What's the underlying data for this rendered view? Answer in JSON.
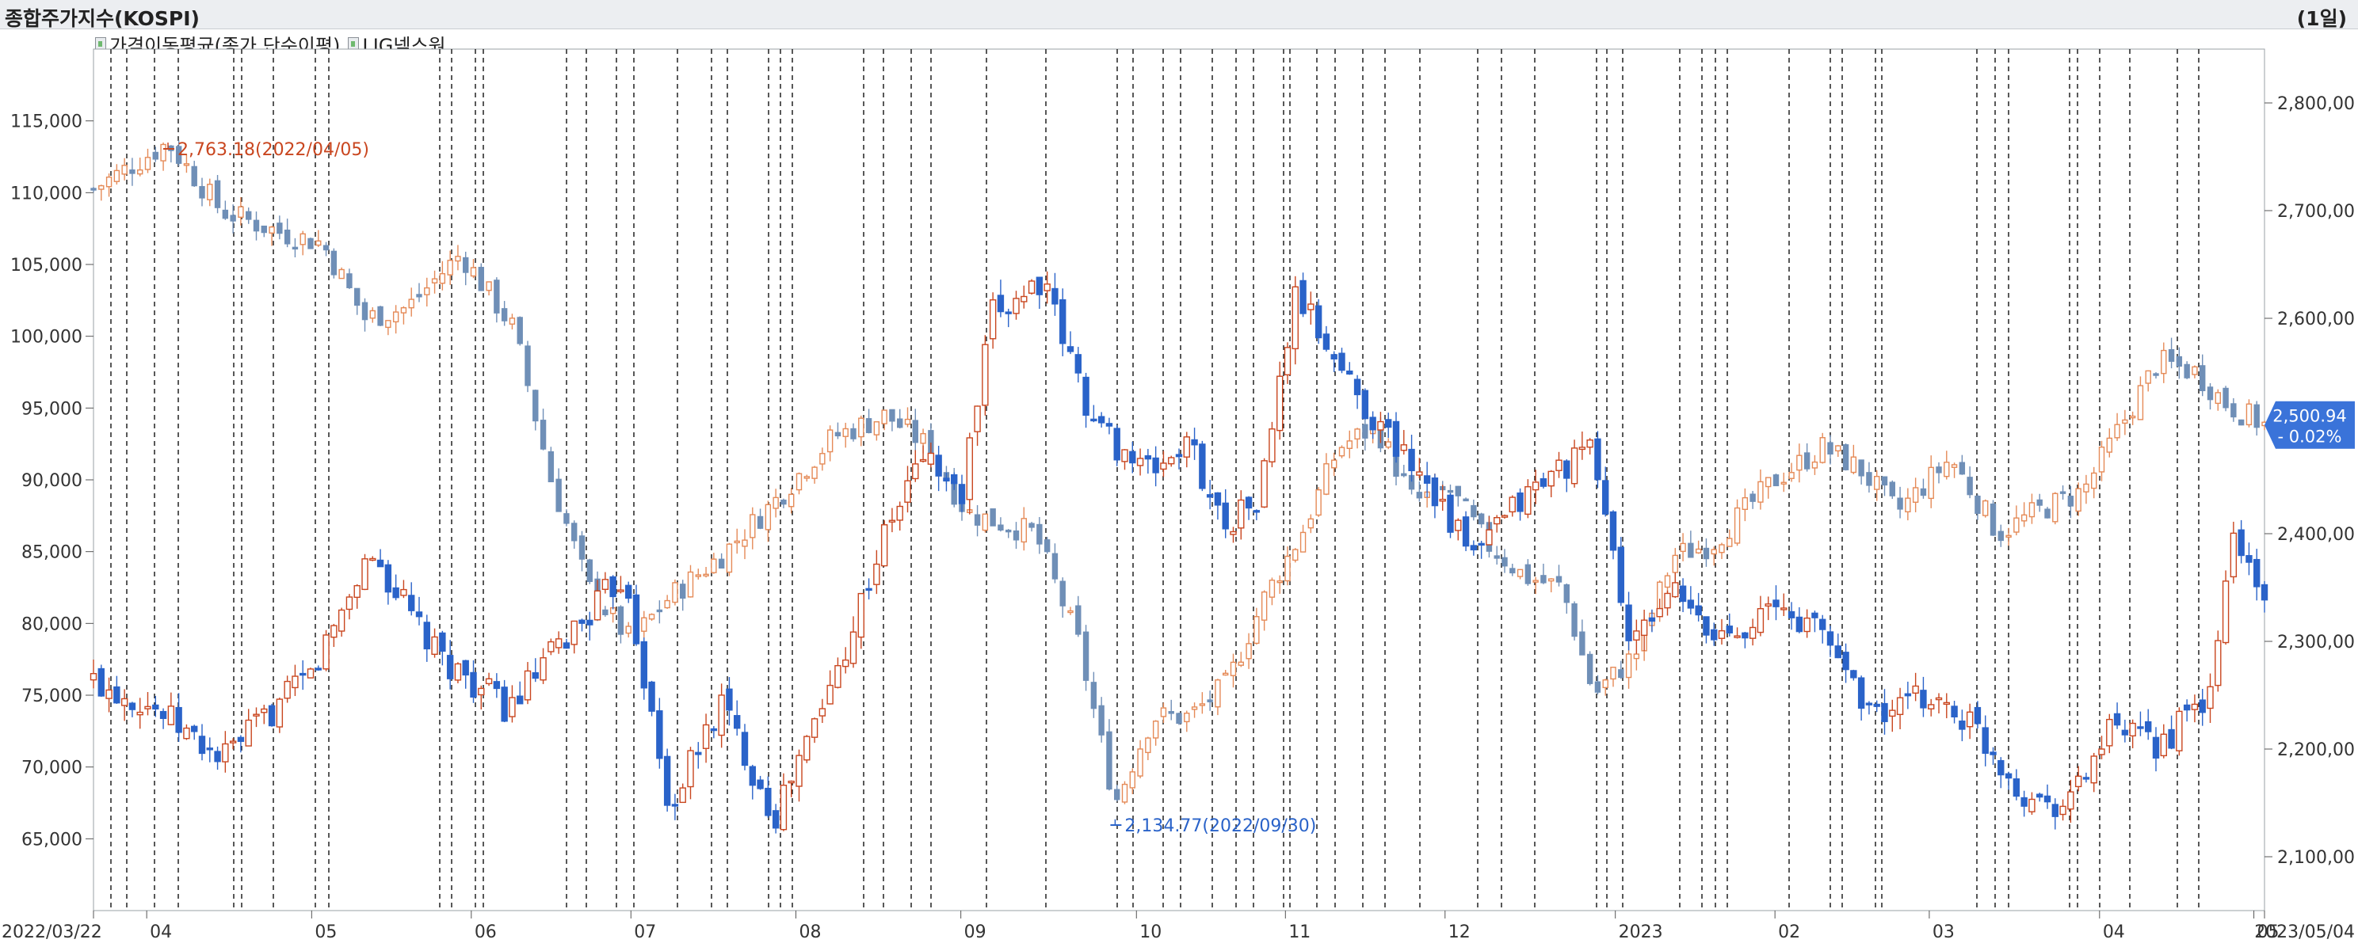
{
  "header": {
    "title": "종합주가지수(KOSPI)",
    "period": "(1일)"
  },
  "legend": [
    {
      "label": "가격이동평균(종가,단순이평)"
    },
    {
      "label": "LIG넥스원"
    }
  ],
  "colors": {
    "up": "#c9461f",
    "down": "#2a63c9",
    "kospi_up": "#e58a57",
    "kospi_down": "#6f8fb7",
    "vline": "#111111",
    "annot_high": "#c9461f",
    "annot_low": "#2a63c9",
    "current_badge": "#3a73d9"
  },
  "chart_data": {
    "type": "line",
    "x_range": [
      "2022/03/22",
      "2023/05/04"
    ],
    "x_tick_labels": [
      "2022/03/22",
      "04",
      "05",
      "06",
      "07",
      "08",
      "09",
      "10",
      "11",
      "12",
      "2023",
      "02",
      "03",
      "04",
      "05",
      "2023/05/04"
    ],
    "y_left": {
      "label": "LIG넥스원",
      "ticks": [
        "115,000",
        "110,000",
        "105,000",
        "100,000",
        "95,000",
        "90,000",
        "85,000",
        "80,000",
        "75,000",
        "70,000",
        "65,000"
      ],
      "range": [
        60000,
        120000
      ]
    },
    "y_right": {
      "label": "KOSPI",
      "ticks": [
        "2,800,00",
        "2,700,00",
        "2,600,00",
        "2,500,00",
        "2,400,00",
        "2,300,00",
        "2,200,00",
        "2,100,00"
      ],
      "range": [
        2050,
        2850
      ]
    },
    "series": [
      {
        "name": "LIG넥스원",
        "x": [
          "2022/03/22",
          "2022/04/01",
          "2022/04/15",
          "2022/05/02",
          "2022/05/13",
          "2022/05/25",
          "2022/06/08",
          "2022/06/20",
          "2022/06/30",
          "2022/07/08",
          "2022/07/18",
          "2022/07/28",
          "2022/08/08",
          "2022/08/17",
          "2022/08/25",
          "2022/09/01",
          "2022/09/07",
          "2022/09/16",
          "2022/09/26",
          "2022/10/06",
          "2022/10/14",
          "2022/10/20",
          "2022/10/27",
          "2022/11/03",
          "2022/11/11",
          "2022/11/18",
          "2022/11/28",
          "2022/12/06",
          "2022/12/15",
          "2022/12/23",
          "2022/12/29",
          "2023/01/05",
          "2023/01/12",
          "2023/01/20",
          "2023/02/01",
          "2023/02/10",
          "2023/02/20",
          "2023/03/02",
          "2023/03/10",
          "2023/03/20",
          "2023/03/28",
          "2023/04/05",
          "2023/04/14",
          "2023/04/24",
          "2023/04/28",
          "2023/05/04"
        ],
        "values": [
          76000,
          74500,
          70500,
          76500,
          85000,
          78000,
          74000,
          79500,
          83500,
          67000,
          74500,
          66500,
          76000,
          85500,
          92000,
          88500,
          101500,
          104000,
          94000,
          90500,
          92500,
          87000,
          88500,
          103000,
          98000,
          94000,
          90000,
          84500,
          88500,
          91000,
          92000,
          78000,
          82500,
          79000,
          81000,
          79500,
          73500,
          75000,
          73000,
          68000,
          67500,
          72500,
          71500,
          75000,
          86500,
          81500
        ]
      },
      {
        "name": "KOSPI",
        "x": [
          "2022/03/22",
          "2022/04/05",
          "2022/04/15",
          "2022/04/26",
          "2022/05/04",
          "2022/05/12",
          "2022/05/20",
          "2022/05/30",
          "2022/06/09",
          "2022/06/16",
          "2022/06/23",
          "2022/07/01",
          "2022/07/08",
          "2022/07/18",
          "2022/07/28",
          "2022/08/08",
          "2022/08/18",
          "2022/08/26",
          "2022/09/02",
          "2022/09/15",
          "2022/09/23",
          "2022/09/30",
          "2022/10/07",
          "2022/10/14",
          "2022/10/21",
          "2022/10/28",
          "2022/11/04",
          "2022/11/11",
          "2022/11/18",
          "2022/11/25",
          "2022/12/02",
          "2022/12/09",
          "2022/12/16",
          "2022/12/23",
          "2022/12/29",
          "2023/01/06",
          "2023/01/13",
          "2023/01/20",
          "2023/02/01",
          "2023/02/10",
          "2023/02/17",
          "2023/02/24",
          "2023/03/06",
          "2023/03/15",
          "2023/03/22",
          "2023/03/31",
          "2023/04/07",
          "2023/04/14",
          "2023/04/21",
          "2023/04/27",
          "2023/05/04"
        ],
        "values": [
          2720,
          2763,
          2700,
          2680,
          2670,
          2600,
          2610,
          2660,
          2590,
          2450,
          2350,
          2300,
          2340,
          2380,
          2430,
          2490,
          2510,
          2480,
          2420,
          2400,
          2300,
          2150,
          2230,
          2230,
          2260,
          2340,
          2400,
          2480,
          2500,
          2430,
          2440,
          2390,
          2360,
          2350,
          2250,
          2290,
          2380,
          2390,
          2450,
          2480,
          2460,
          2420,
          2470,
          2400,
          2420,
          2440,
          2500,
          2560,
          2550,
          2520,
          2500.94
        ]
      }
    ],
    "annotations": [
      {
        "text": "2,763.18(2022/04/05)",
        "series": "KOSPI",
        "kind": "high",
        "x": "2022/04/05",
        "y": 2763.18
      },
      {
        "text": "2,134.77(2022/09/30)",
        "series": "KOSPI",
        "kind": "low",
        "x": "2022/09/30",
        "y": 2134.77
      }
    ],
    "current_value": {
      "value": "2,500.94",
      "change": "- 0.02%"
    },
    "vertical_event_lines": true,
    "grid": false
  }
}
